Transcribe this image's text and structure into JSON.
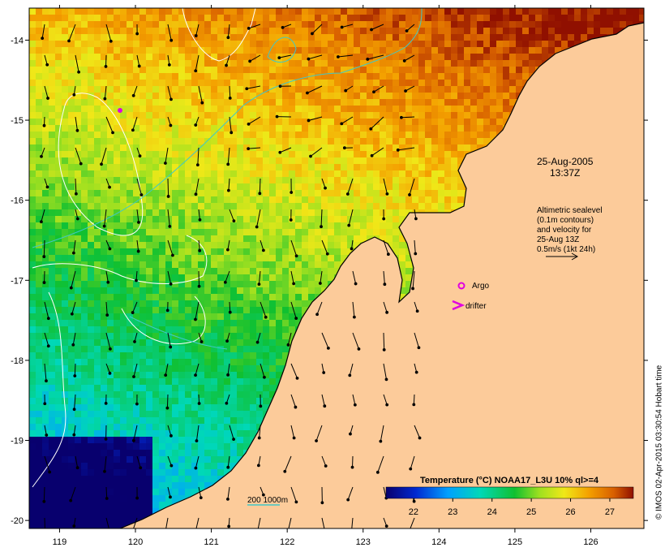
{
  "date": "25-Aug-2005",
  "time": "13:37Z",
  "legend_note": {
    "lines": [
      "Altimetric sealevel",
      "(0.1m contours)",
      "and velocity for",
      "25-Aug 13Z",
      "0.5m/s (1kt 24h)"
    ]
  },
  "markers": {
    "argo": "Argo",
    "drifter": "drifter"
  },
  "depth_label": "200  1000m",
  "colorbar": {
    "title": "Temperature (°C) NOAA17_L3U 10% ql>=4",
    "ticks": [
      "22",
      "23",
      "24",
      "25",
      "26",
      "27"
    ],
    "min": 21.3,
    "max": 27.6
  },
  "credit": "© IMOS 02-Apr-2015 03:30:54 Hobart time",
  "axes": {
    "x_ticks": [
      "119",
      "120",
      "121",
      "122",
      "123",
      "124",
      "125",
      "126"
    ],
    "y_ticks": [
      "-14",
      "-15",
      "-16",
      "-17",
      "-18",
      "-19",
      "-20"
    ],
    "lon_range": [
      118.6,
      126.7
    ],
    "lat_range": [
      -13.6,
      -20.1
    ]
  },
  "colors": {
    "land": "#fccb9a",
    "contour": "#ffffff",
    "depth": "#40c8c8",
    "marker": "#e000e0",
    "coast": "#000000"
  }
}
